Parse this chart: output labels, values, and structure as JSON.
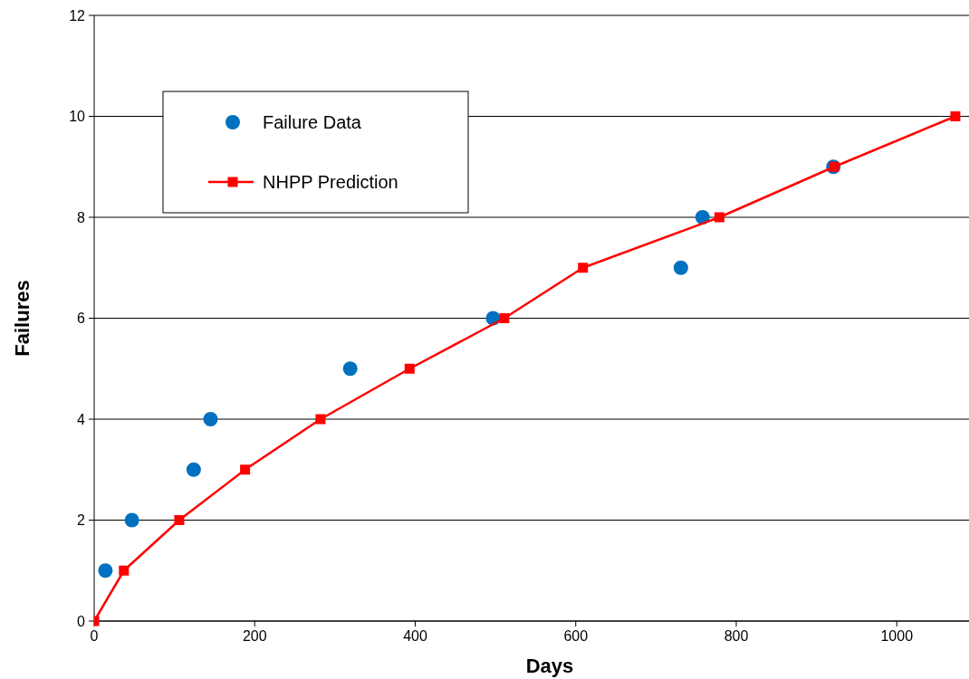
{
  "chart_data": {
    "type": "scatter",
    "xlabel": "Days",
    "ylabel": "Failures",
    "xlim": [
      0,
      1090
    ],
    "ylim": [
      0,
      12
    ],
    "xticks": [
      0,
      200,
      400,
      600,
      800,
      1000
    ],
    "yticks": [
      0,
      2,
      4,
      6,
      8,
      10,
      12
    ],
    "grid": "y",
    "legend": "top left",
    "series": [
      {
        "name": "Failure Data",
        "color": "#0070c0",
        "marker": "circle",
        "x": [
          14,
          47,
          124,
          145,
          319,
          497,
          731,
          758,
          921
        ],
        "values": [
          1,
          2,
          3,
          4,
          5,
          6,
          7,
          8,
          9
        ]
      },
      {
        "name": "NHPP Prediction",
        "type": "line",
        "color": "#ff0000",
        "marker": "square",
        "line_style": "solid",
        "x": [
          0,
          37,
          106,
          188,
          282,
          393,
          511,
          609,
          779,
          922,
          1073
        ],
        "values": [
          0,
          1,
          2,
          3,
          4,
          5,
          6,
          7,
          8,
          9,
          10
        ]
      }
    ]
  }
}
